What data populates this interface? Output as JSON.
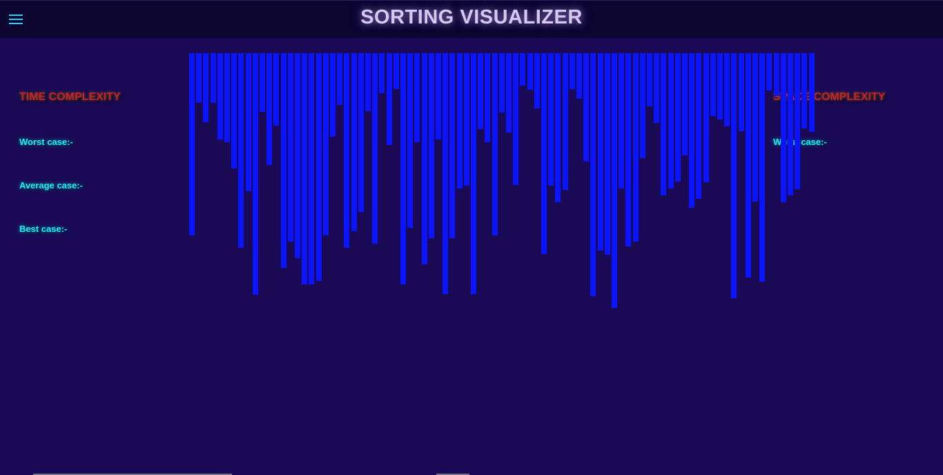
{
  "header": {
    "menu_icon": "hamburger-menu-icon",
    "title": "SORTING VISUALIZER"
  },
  "time_complexity": {
    "heading": "TIME COMPLEXITY",
    "worst": "Worst case:-",
    "average": "Average case:-",
    "best": "Best case:-"
  },
  "space_complexity": {
    "heading": "SPACE COMPLEXITY",
    "worst": "Worst case:-"
  },
  "colors": {
    "background": "#1a0a55",
    "topbar": "#0c0530",
    "bar": "#0a14ff",
    "heading": "#c8202a",
    "case_text": "#18f0ff"
  },
  "array": {
    "values": [
      264,
      72,
      100,
      72,
      125,
      129,
      167,
      282,
      200,
      350,
      85,
      162,
      105,
      311,
      273,
      297,
      335,
      335,
      330,
      264,
      121,
      75,
      282,
      258,
      230,
      84,
      276,
      58,
      133,
      52,
      335,
      253,
      129,
      306,
      268,
      125,
      349,
      268,
      196,
      192,
      349,
      110,
      129,
      264,
      86,
      115,
      191,
      47,
      53,
      80,
      291,
      192,
      216,
      198,
      52,
      66,
      157,
      352,
      286,
      292,
      369,
      196,
      280,
      273,
      152,
      77,
      101,
      206,
      196,
      186,
      148,
      224,
      211,
      187,
      91,
      96,
      106,
      355,
      113,
      325,
      215,
      331,
      54,
      62,
      216,
      206,
      197,
      109,
      114
    ]
  }
}
